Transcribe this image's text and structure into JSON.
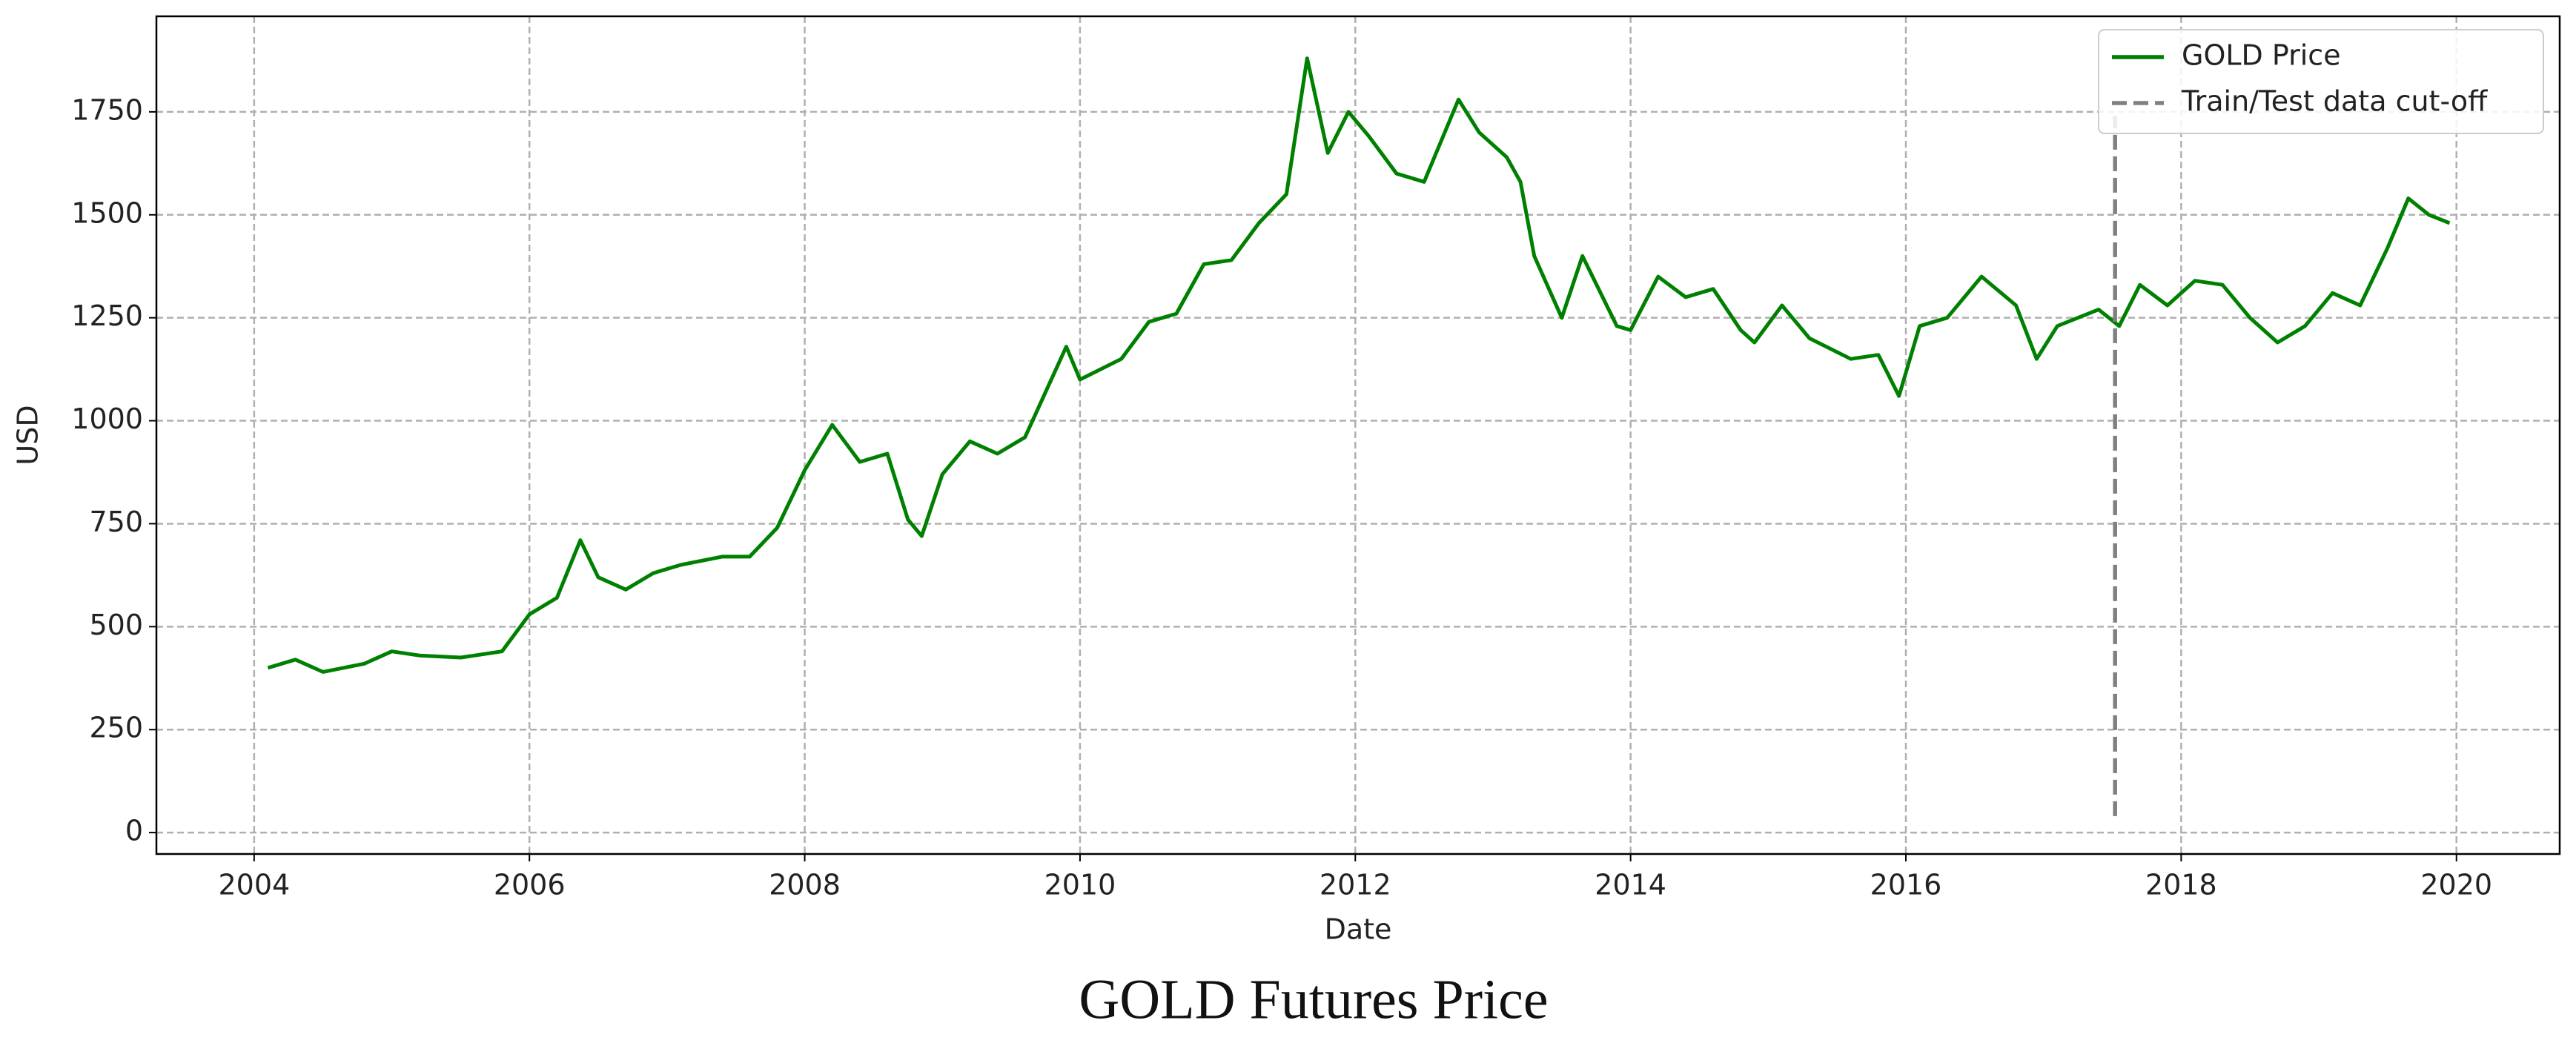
{
  "chart_data": {
    "type": "line",
    "title": "GOLD Futures Price",
    "xlabel": "Date",
    "ylabel": "USD",
    "x": [
      2004.1,
      2004.3,
      2004.5,
      2004.8,
      2005.0,
      2005.2,
      2005.5,
      2005.8,
      2006.0,
      2006.2,
      2006.37,
      2006.5,
      2006.7,
      2006.9,
      2007.1,
      2007.4,
      2007.6,
      2007.8,
      2008.0,
      2008.2,
      2008.4,
      2008.6,
      2008.75,
      2008.85,
      2009.0,
      2009.2,
      2009.4,
      2009.6,
      2009.9,
      2010.0,
      2010.3,
      2010.5,
      2010.7,
      2010.9,
      2011.1,
      2011.3,
      2011.5,
      2011.65,
      2011.8,
      2011.95,
      2012.1,
      2012.3,
      2012.5,
      2012.75,
      2012.9,
      2013.1,
      2013.2,
      2013.3,
      2013.5,
      2013.65,
      2013.9,
      2014.0,
      2014.2,
      2014.4,
      2014.6,
      2014.8,
      2014.9,
      2015.1,
      2015.3,
      2015.6,
      2015.8,
      2015.95,
      2016.1,
      2016.3,
      2016.55,
      2016.8,
      2016.95,
      2017.1,
      2017.4,
      2017.55,
      2017.7,
      2017.9,
      2018.1,
      2018.3,
      2018.5,
      2018.7,
      2018.9,
      2019.1,
      2019.3,
      2019.5,
      2019.65,
      2019.8,
      2019.95
    ],
    "series": [
      {
        "name": "GOLD Price",
        "color": "#008000",
        "values": [
          400,
          420,
          390,
          410,
          440,
          430,
          425,
          440,
          530,
          570,
          710,
          620,
          590,
          630,
          650,
          670,
          670,
          740,
          880,
          990,
          900,
          920,
          760,
          720,
          870,
          950,
          920,
          960,
          1180,
          1100,
          1150,
          1240,
          1260,
          1380,
          1390,
          1480,
          1550,
          1880,
          1650,
          1750,
          1690,
          1600,
          1580,
          1780,
          1700,
          1640,
          1580,
          1400,
          1250,
          1400,
          1230,
          1220,
          1350,
          1300,
          1320,
          1220,
          1190,
          1280,
          1200,
          1150,
          1160,
          1060,
          1230,
          1250,
          1350,
          1280,
          1150,
          1230,
          1270,
          1230,
          1330,
          1280,
          1340,
          1330,
          1250,
          1190,
          1230,
          1310,
          1280,
          1420,
          1540,
          1500,
          1480
        ]
      },
      {
        "name": "Train/Test data cut-off",
        "color": "#808080",
        "dashed": true,
        "x": [
          2017.52,
          2017.52
        ],
        "values": [
          40,
          1740
        ]
      }
    ],
    "xlim": [
      2003.29,
      2020.75
    ],
    "xticks": [
      2004,
      2006,
      2008,
      2010,
      2012,
      2014,
      2016,
      2018,
      2020
    ],
    "ylim": [
      -52,
      1982
    ],
    "yticks": [
      0,
      250,
      500,
      750,
      1000,
      1250,
      1500,
      1750
    ],
    "grid": true,
    "legend": "upper right"
  }
}
